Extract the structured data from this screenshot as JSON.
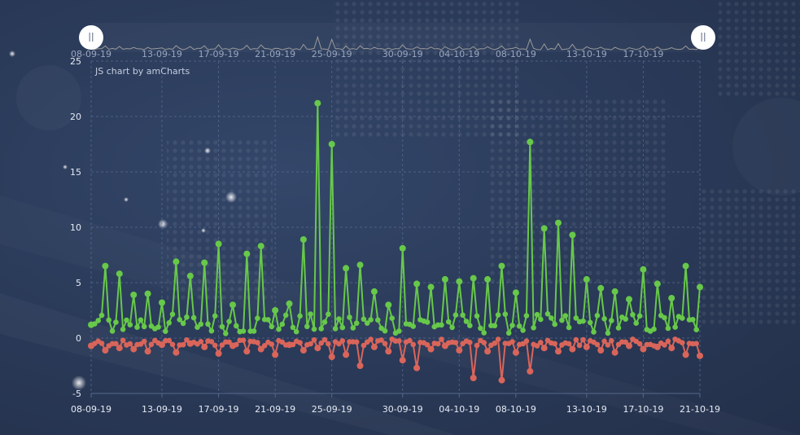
{
  "colors": {
    "positive": "#67c84a",
    "negative": "#d9655a",
    "grid": "#55688c",
    "scrollbar_line": "#9a9a9a",
    "text": "#e6ebf5"
  },
  "credit_text": "JS chart by amCharts",
  "scrollbar": {
    "tick_labels": [
      "08-09-19",
      "13-09-19",
      "17-09-19",
      "21-09-19",
      "25-09-19",
      "30-09-19",
      "04-10-19",
      "08-10-19",
      "13-10-19",
      "17-10-19"
    ],
    "grip_left_icon": "grip-handle-icon",
    "grip_right_icon": "grip-handle-icon"
  },
  "chart_data": {
    "type": "line",
    "title": "",
    "xlabel": "",
    "ylabel": "",
    "ylim": [
      -5,
      25
    ],
    "yticks": [
      -5,
      0,
      5,
      10,
      15,
      20,
      25
    ],
    "x_tick_labels": [
      "08-09-19",
      "13-09-19",
      "17-09-19",
      "21-09-19",
      "25-09-19",
      "30-09-19",
      "04-10-19",
      "08-10-19",
      "13-10-19",
      "17-10-19",
      "21-10-19"
    ],
    "x_tick_dates": [
      "2019-09-08",
      "2019-09-13",
      "2019-09-17",
      "2019-09-21",
      "2019-09-25",
      "2019-09-30",
      "2019-10-04",
      "2019-10-08",
      "2019-10-13",
      "2019-10-17",
      "2019-10-21"
    ],
    "x_range": [
      "2019-09-08",
      "2019-10-21"
    ],
    "grid": true,
    "legend": "none",
    "series": [
      {
        "values_by_date": [
          [
            "2019-09-08",
            1.2
          ],
          [
            "2019-09-09",
            6.5
          ],
          [
            "2019-09-10",
            5.8
          ],
          [
            "2019-09-11",
            3.9
          ],
          [
            "2019-09-12",
            4.0
          ],
          [
            "2019-09-13",
            3.2
          ],
          [
            "2019-09-14",
            6.9
          ],
          [
            "2019-09-15",
            5.6
          ],
          [
            "2019-09-16",
            6.8
          ],
          [
            "2019-09-17",
            8.5
          ],
          [
            "2019-09-18",
            3.0
          ],
          [
            "2019-09-19",
            7.6
          ],
          [
            "2019-09-20",
            8.3
          ],
          [
            "2019-09-21",
            2.5
          ],
          [
            "2019-09-22",
            3.1
          ],
          [
            "2019-09-23",
            8.9
          ],
          [
            "2019-09-24",
            21.2
          ],
          [
            "2019-09-25",
            17.5
          ],
          [
            "2019-09-26",
            6.3
          ],
          [
            "2019-09-27",
            6.6
          ],
          [
            "2019-09-28",
            4.2
          ],
          [
            "2019-09-29",
            3.0
          ],
          [
            "2019-09-30",
            8.1
          ],
          [
            "2019-10-01",
            4.9
          ],
          [
            "2019-10-02",
            4.6
          ],
          [
            "2019-10-03",
            5.3
          ],
          [
            "2019-10-04",
            5.1
          ],
          [
            "2019-10-05",
            5.4
          ],
          [
            "2019-10-06",
            5.3
          ],
          [
            "2019-10-07",
            6.5
          ],
          [
            "2019-10-08",
            4.1
          ],
          [
            "2019-10-09",
            17.7
          ],
          [
            "2019-10-10",
            9.9
          ],
          [
            "2019-10-11",
            10.4
          ],
          [
            "2019-10-12",
            9.3
          ],
          [
            "2019-10-13",
            5.3
          ],
          [
            "2019-10-14",
            4.5
          ],
          [
            "2019-10-15",
            4.2
          ],
          [
            "2019-10-16",
            3.5
          ],
          [
            "2019-10-17",
            6.2
          ],
          [
            "2019-10-18",
            4.9
          ],
          [
            "2019-10-19",
            3.6
          ],
          [
            "2019-10-20",
            6.5
          ],
          [
            "2019-10-21",
            4.6
          ]
        ]
      },
      {
        "values_by_date": [
          [
            "2019-09-08",
            -0.7
          ],
          [
            "2019-09-09",
            -1.1
          ],
          [
            "2019-09-10",
            -0.9
          ],
          [
            "2019-09-11",
            -1.0
          ],
          [
            "2019-09-12",
            -1.2
          ],
          [
            "2019-09-13",
            -0.6
          ],
          [
            "2019-09-14",
            -1.3
          ],
          [
            "2019-09-15",
            -0.5
          ],
          [
            "2019-09-16",
            -0.8
          ],
          [
            "2019-09-17",
            -1.4
          ],
          [
            "2019-09-18",
            -0.7
          ],
          [
            "2019-09-19",
            -1.2
          ],
          [
            "2019-09-20",
            -1.0
          ],
          [
            "2019-09-21",
            -1.5
          ],
          [
            "2019-09-22",
            -0.6
          ],
          [
            "2019-09-23",
            -1.1
          ],
          [
            "2019-09-24",
            -0.9
          ],
          [
            "2019-09-25",
            -1.7
          ],
          [
            "2019-09-26",
            -1.5
          ],
          [
            "2019-09-27",
            -2.5
          ],
          [
            "2019-09-28",
            -0.8
          ],
          [
            "2019-09-29",
            -1.2
          ],
          [
            "2019-09-30",
            -2.0
          ],
          [
            "2019-10-01",
            -2.7
          ],
          [
            "2019-10-02",
            -1.0
          ],
          [
            "2019-10-03",
            -0.7
          ],
          [
            "2019-10-04",
            -1.1
          ],
          [
            "2019-10-05",
            -3.6
          ],
          [
            "2019-10-06",
            -1.2
          ],
          [
            "2019-10-07",
            -3.8
          ],
          [
            "2019-10-08",
            -1.3
          ],
          [
            "2019-10-09",
            -3.0
          ],
          [
            "2019-10-10",
            -0.9
          ],
          [
            "2019-10-11",
            -1.2
          ],
          [
            "2019-10-12",
            -1.0
          ],
          [
            "2019-10-13",
            -0.8
          ],
          [
            "2019-10-14",
            -1.1
          ],
          [
            "2019-10-15",
            -1.3
          ],
          [
            "2019-10-16",
            -0.7
          ],
          [
            "2019-10-17",
            -1.0
          ],
          [
            "2019-10-18",
            -0.8
          ],
          [
            "2019-10-19",
            -0.9
          ],
          [
            "2019-10-20",
            -1.5
          ],
          [
            "2019-10-21",
            -1.6
          ]
        ]
      }
    ]
  }
}
